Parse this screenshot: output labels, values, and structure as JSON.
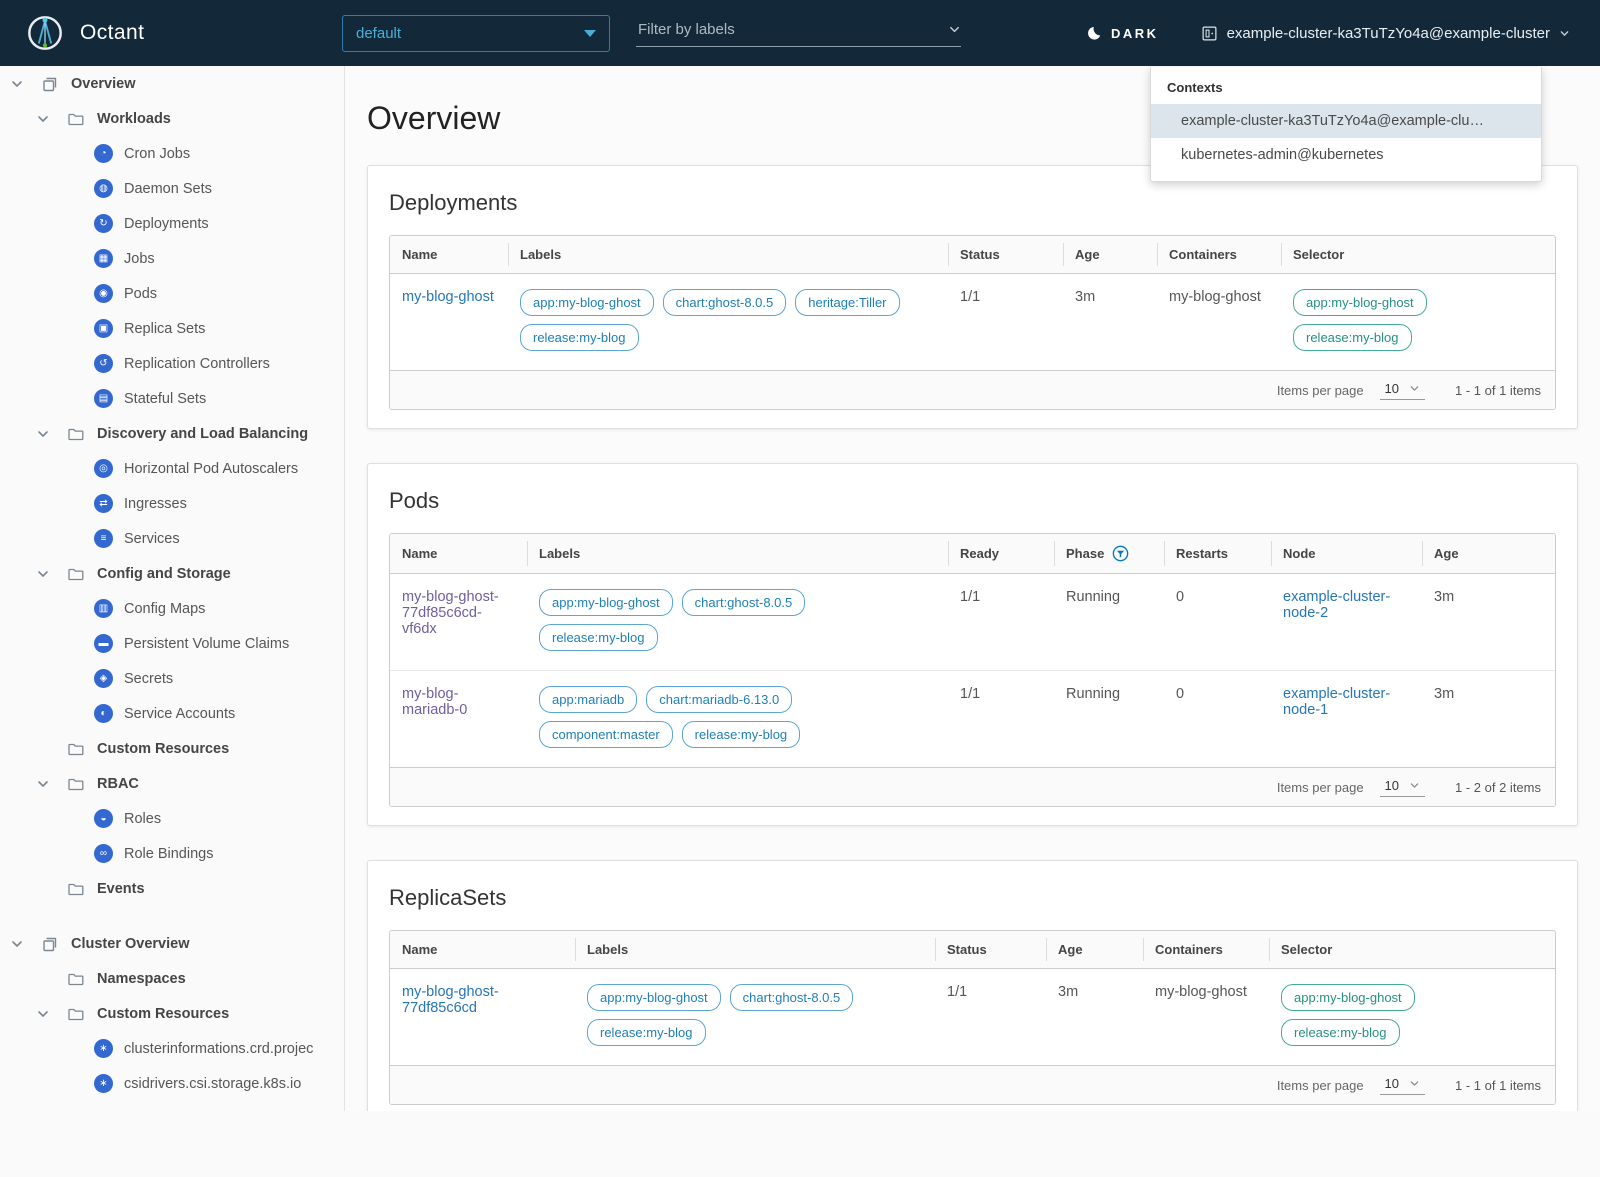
{
  "colors": {
    "header_bg": "#13293a",
    "accent_blue": "#49afd9",
    "link_blue": "#2575b8",
    "link_visited_purple": "#6e5fa0",
    "label_badge": "#1e7fb8",
    "selector_badge": "#279082",
    "resource_icon_blue": "#3468d1"
  },
  "header": {
    "app_name": "Octant",
    "namespace_select": {
      "value": "default"
    },
    "filter_input": {
      "placeholder": "Filter by labels"
    },
    "theme_toggle": {
      "label": "DARK"
    },
    "context_button": {
      "label": "example-cluster-ka3TuTzYo4a@example-cluster"
    }
  },
  "context_dropdown": {
    "title": "Contexts",
    "items": [
      {
        "label": "example-cluster-ka3TuTzYo4a@example-clu…",
        "selected": true
      },
      {
        "label": "kubernetes-admin@kubernetes",
        "selected": false
      }
    ]
  },
  "sidebar": {
    "items": [
      {
        "label": "Overview",
        "level": 0,
        "group": true,
        "icon": "overview",
        "chevron": true
      },
      {
        "label": "Workloads",
        "level": 1,
        "group": true,
        "icon": "folder",
        "chevron": true
      },
      {
        "label": "Cron Jobs",
        "level": 2,
        "icon": "cron-jobs"
      },
      {
        "label": "Daemon Sets",
        "level": 2,
        "icon": "daemon-sets"
      },
      {
        "label": "Deployments",
        "level": 2,
        "icon": "deployments"
      },
      {
        "label": "Jobs",
        "level": 2,
        "icon": "jobs"
      },
      {
        "label": "Pods",
        "level": 2,
        "icon": "pods"
      },
      {
        "label": "Replica Sets",
        "level": 2,
        "icon": "replica-sets"
      },
      {
        "label": "Replication Controllers",
        "level": 2,
        "icon": "replication-controllers"
      },
      {
        "label": "Stateful Sets",
        "level": 2,
        "icon": "stateful-sets"
      },
      {
        "label": "Discovery and Load Balancing",
        "level": 1,
        "group": true,
        "icon": "folder",
        "chevron": true
      },
      {
        "label": "Horizontal Pod Autoscalers",
        "level": 2,
        "icon": "horizontal-pod-autoscalers"
      },
      {
        "label": "Ingresses",
        "level": 2,
        "icon": "ingresses"
      },
      {
        "label": "Services",
        "level": 2,
        "icon": "services"
      },
      {
        "label": "Config and Storage",
        "level": 1,
        "group": true,
        "icon": "folder",
        "chevron": true
      },
      {
        "label": "Config Maps",
        "level": 2,
        "icon": "config-maps"
      },
      {
        "label": "Persistent Volume Claims",
        "level": 2,
        "icon": "persistent-volume-claims"
      },
      {
        "label": "Secrets",
        "level": 2,
        "icon": "secrets"
      },
      {
        "label": "Service Accounts",
        "level": 2,
        "icon": "service-accounts"
      },
      {
        "label": "Custom Resources",
        "level": 1,
        "group": true,
        "icon": "folder",
        "chevron": false
      },
      {
        "label": "RBAC",
        "level": 1,
        "group": true,
        "icon": "folder",
        "chevron": true
      },
      {
        "label": "Roles",
        "level": 2,
        "icon": "roles"
      },
      {
        "label": "Role Bindings",
        "level": 2,
        "icon": "role-bindings"
      },
      {
        "label": "Events",
        "level": 1,
        "group": true,
        "icon": "folder",
        "chevron": false
      },
      {
        "label": "Cluster Overview",
        "level": 0,
        "group": true,
        "icon": "overview",
        "chevron": true,
        "gap_before": true
      },
      {
        "label": "Namespaces",
        "level": 1,
        "group": true,
        "icon": "folder",
        "chevron": false
      },
      {
        "label": "Custom Resources",
        "level": 1,
        "group": true,
        "icon": "folder",
        "chevron": true
      },
      {
        "label": "clusterinformations.crd.projec",
        "level": 2,
        "icon": "custom-resource"
      },
      {
        "label": "csidrivers.csi.storage.k8s.io",
        "level": 2,
        "icon": "custom-resource"
      }
    ]
  },
  "main": {
    "title": "Overview",
    "cards": [
      {
        "id": "deployments",
        "title": "Deployments",
        "columns": [
          {
            "label": "Name"
          },
          {
            "label": "Labels"
          },
          {
            "label": "Status"
          },
          {
            "label": "Age"
          },
          {
            "label": "Containers"
          },
          {
            "label": "Selector"
          }
        ],
        "rows": [
          {
            "cells": [
              {
                "type": "link",
                "variant": "blue",
                "text": "my-blog-ghost"
              },
              {
                "type": "badges",
                "style": "label",
                "items": [
                  "app:my-blog-ghost",
                  "chart:ghost-8.0.5",
                  "heritage:Tiller",
                  "release:my-blog"
                ]
              },
              {
                "type": "text",
                "text": "1/1"
              },
              {
                "type": "text",
                "text": "3m"
              },
              {
                "type": "text",
                "text": "my-blog-ghost"
              },
              {
                "type": "badges",
                "style": "selector",
                "items": [
                  "app:my-blog-ghost",
                  "release:my-blog"
                ]
              }
            ]
          }
        ],
        "footer": {
          "items_per_page_label": "Items per page",
          "page_size": "10",
          "range": "1 - 1 of 1 items"
        }
      },
      {
        "id": "pods",
        "title": "Pods",
        "columns": [
          {
            "label": "Name"
          },
          {
            "label": "Labels"
          },
          {
            "label": "Ready"
          },
          {
            "label": "Phase",
            "filter_icon": true
          },
          {
            "label": "Restarts"
          },
          {
            "label": "Node"
          },
          {
            "label": "Age"
          }
        ],
        "rows": [
          {
            "cells": [
              {
                "type": "link",
                "variant": "purple",
                "text": "my-blog-ghost-77df85c6cd-vf6dx"
              },
              {
                "type": "badges",
                "style": "label",
                "items": [
                  "app:my-blog-ghost",
                  "chart:ghost-8.0.5",
                  "release:my-blog"
                ]
              },
              {
                "type": "text",
                "text": "1/1"
              },
              {
                "type": "text",
                "text": "Running"
              },
              {
                "type": "text",
                "text": "0"
              },
              {
                "type": "link",
                "variant": "blue",
                "text": "example-cluster-node-2"
              },
              {
                "type": "text",
                "text": "3m"
              }
            ]
          },
          {
            "cells": [
              {
                "type": "link",
                "variant": "purple",
                "text": "my-blog-mariadb-0"
              },
              {
                "type": "badges",
                "style": "label",
                "items": [
                  "app:mariadb",
                  "chart:mariadb-6.13.0",
                  "component:master",
                  "release:my-blog"
                ]
              },
              {
                "type": "text",
                "text": "1/1"
              },
              {
                "type": "text",
                "text": "Running"
              },
              {
                "type": "text",
                "text": "0"
              },
              {
                "type": "link",
                "variant": "blue",
                "text": "example-cluster-node-1"
              },
              {
                "type": "text",
                "text": "3m"
              }
            ]
          }
        ],
        "footer": {
          "items_per_page_label": "Items per page",
          "page_size": "10",
          "range": "1 - 2 of 2 items"
        }
      },
      {
        "id": "replicasets",
        "title": "ReplicaSets",
        "columns": [
          {
            "label": "Name"
          },
          {
            "label": "Labels"
          },
          {
            "label": "Status"
          },
          {
            "label": "Age"
          },
          {
            "label": "Containers"
          },
          {
            "label": "Selector"
          }
        ],
        "rows": [
          {
            "cells": [
              {
                "type": "link",
                "variant": "blue",
                "text": "my-blog-ghost-77df85c6cd"
              },
              {
                "type": "badges",
                "style": "label",
                "items": [
                  "app:my-blog-ghost",
                  "chart:ghost-8.0.5",
                  "release:my-blog"
                ]
              },
              {
                "type": "text",
                "text": "1/1"
              },
              {
                "type": "text",
                "text": "3m"
              },
              {
                "type": "text",
                "text": "my-blog-ghost"
              },
              {
                "type": "badges",
                "style": "selector",
                "items": [
                  "app:my-blog-ghost",
                  "release:my-blog"
                ]
              }
            ]
          }
        ],
        "footer": {
          "items_per_page_label": "Items per page",
          "page_size": "10",
          "range": "1 - 1 of 1 items"
        }
      }
    ]
  }
}
